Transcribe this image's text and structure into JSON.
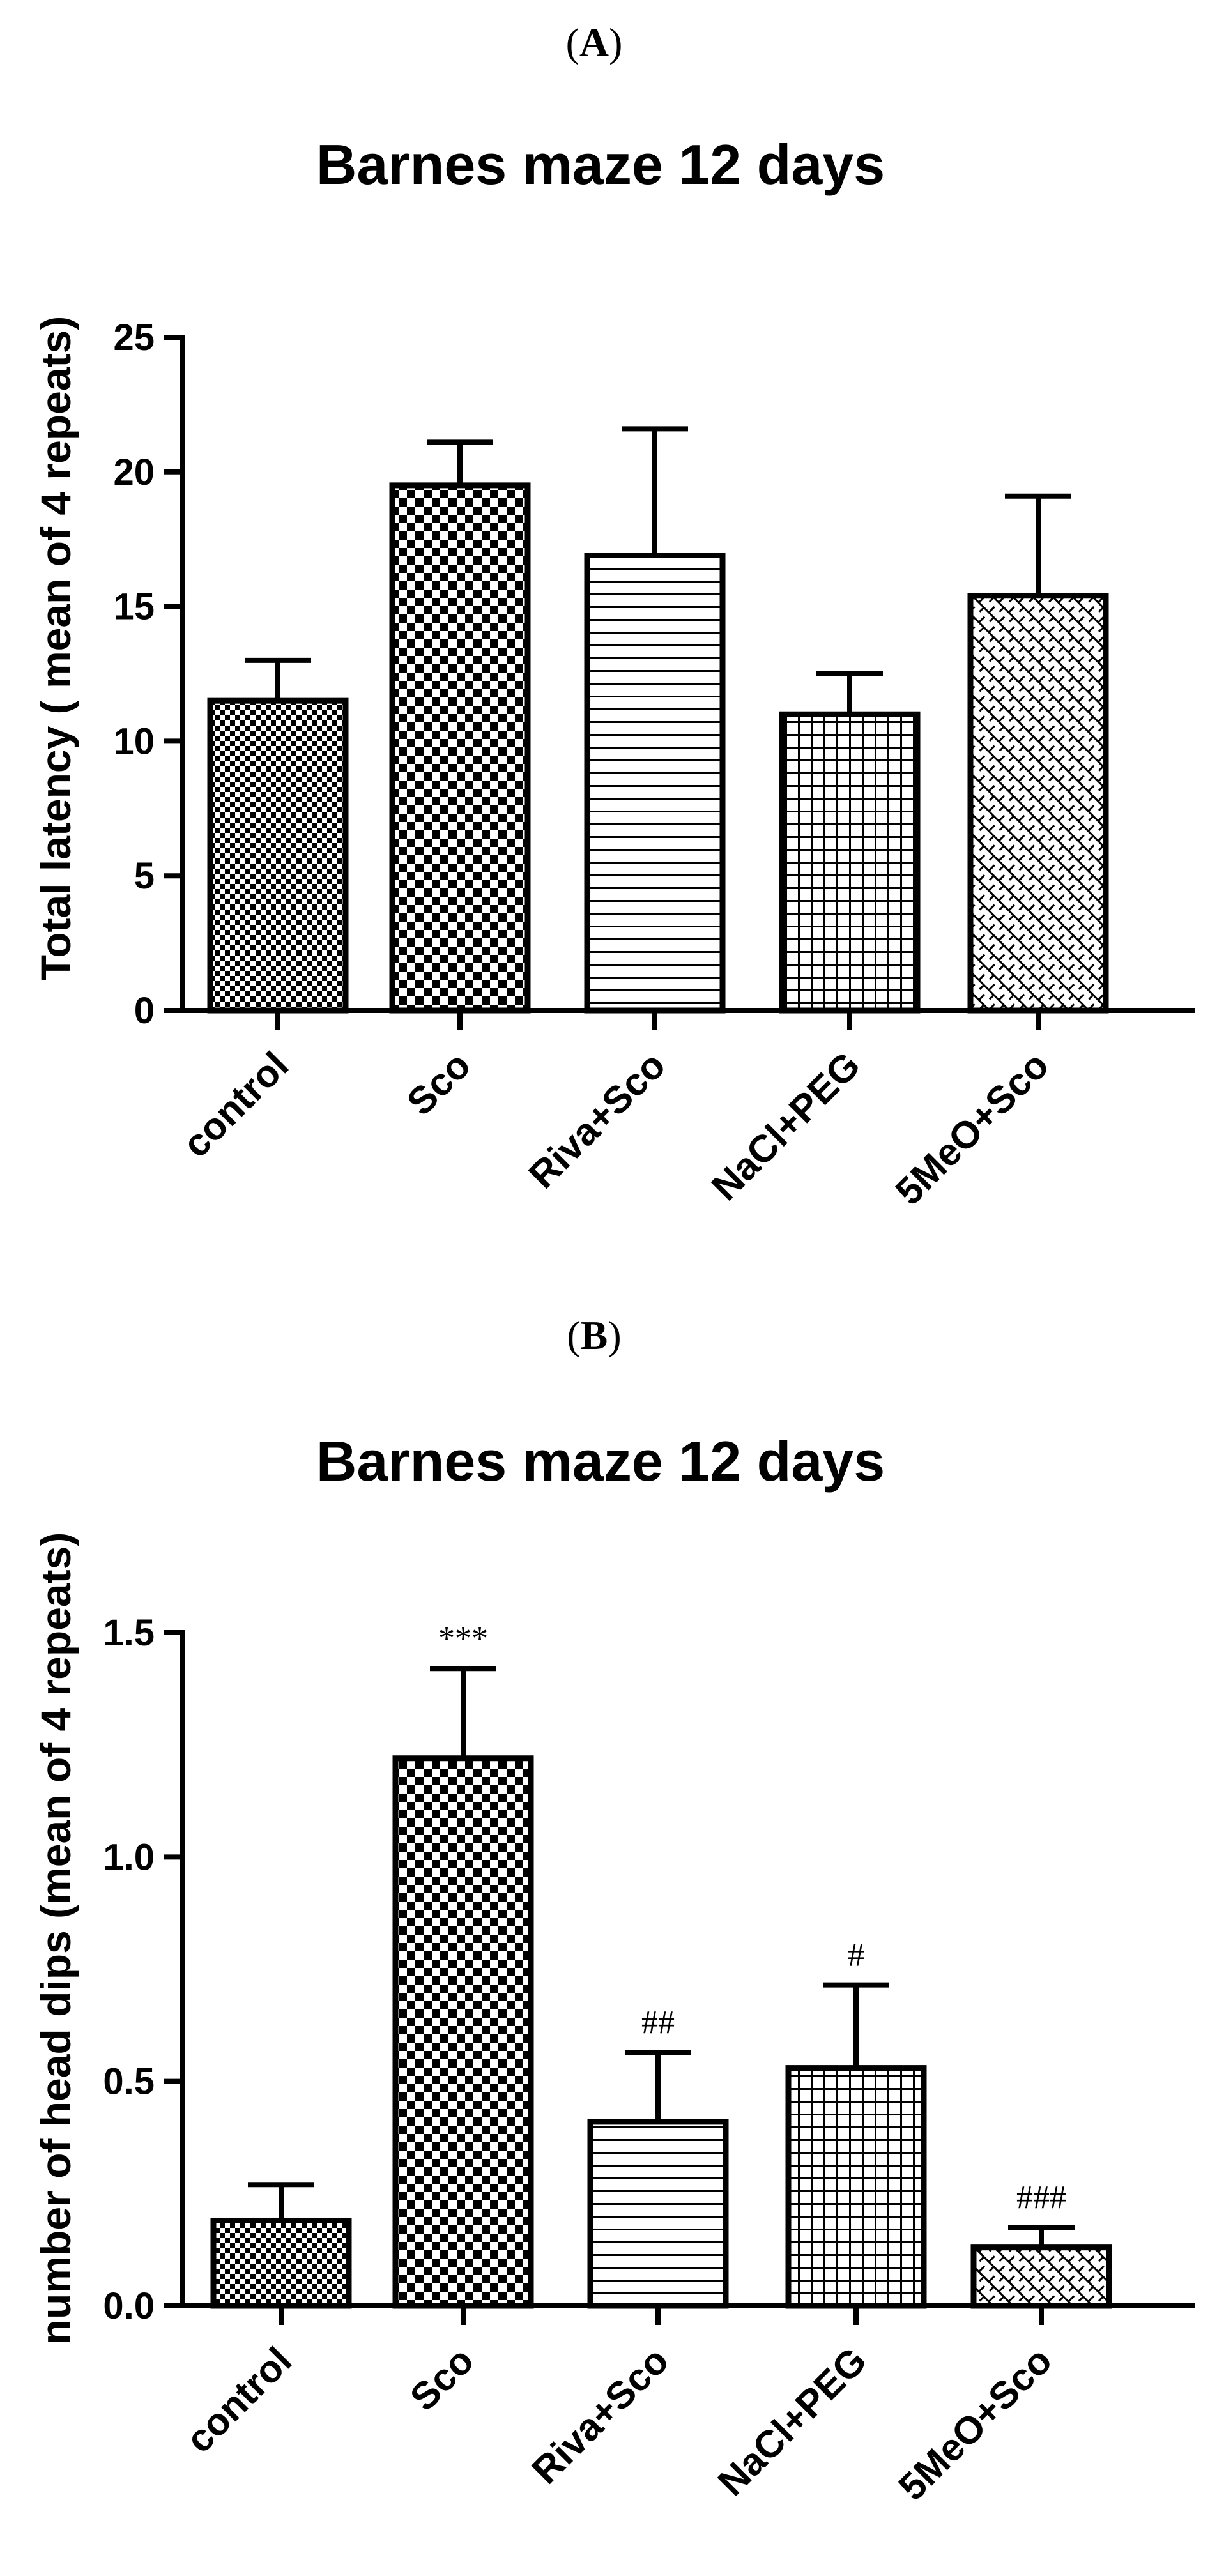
{
  "panels": [
    {
      "label": "A",
      "paren_open": "(",
      "paren_close": ")"
    },
    {
      "label": "B",
      "paren_open": "(",
      "paren_close": ")"
    }
  ],
  "chart_data": [
    {
      "type": "bar",
      "title": "Barnes maze 12 days",
      "xlabel": "",
      "ylabel": "Total latency ( mean of 4 repeats)",
      "ylim": [
        0,
        25
      ],
      "yticks": [
        0,
        5,
        10,
        15,
        20,
        25
      ],
      "ytick_labels": [
        "0",
        "5",
        "10",
        "15",
        "20",
        "25"
      ],
      "categories": [
        "control",
        "Sco",
        "Riva+Sco",
        "NaCl+PEG",
        "5MeO+Sco"
      ],
      "values": [
        11.5,
        19.5,
        16.9,
        11.0,
        15.4
      ],
      "errors": [
        1.5,
        1.6,
        4.7,
        1.5,
        3.7
      ],
      "significance": [
        "",
        "",
        "",
        "",
        ""
      ],
      "patterns": [
        "fine-check",
        "checker",
        "hlines",
        "grid",
        "crosshatch"
      ]
    },
    {
      "type": "bar",
      "title": "Barnes maze 12 days",
      "xlabel": "",
      "ylabel": "number of head dips (mean of 4 repeats)",
      "ylim": [
        0,
        1.5
      ],
      "yticks": [
        0,
        0.5,
        1.0,
        1.5
      ],
      "ytick_labels": [
        "0.0",
        "0.5",
        "1.0",
        "1.5"
      ],
      "categories": [
        "control",
        "Sco",
        "Riva+Sco",
        "NaCl+PEG",
        "5MeO+Sco"
      ],
      "values": [
        0.19,
        1.22,
        0.41,
        0.53,
        0.13
      ],
      "errors": [
        0.08,
        0.2,
        0.155,
        0.185,
        0.045
      ],
      "significance": [
        "",
        "***",
        "##",
        "#",
        "###"
      ],
      "patterns": [
        "fine-check",
        "checker",
        "hlines",
        "grid",
        "crosshatch"
      ]
    }
  ]
}
